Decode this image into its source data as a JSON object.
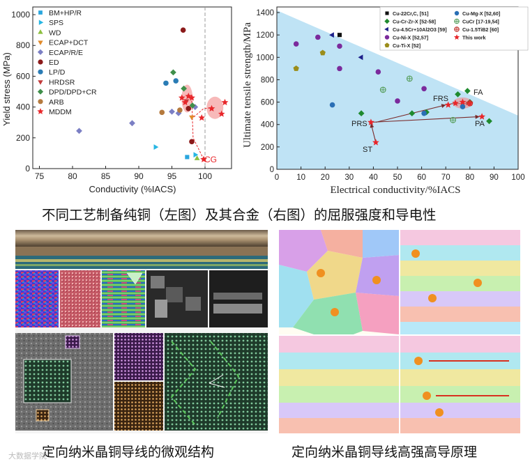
{
  "captions": {
    "top": "不同工艺制备纯铜（左图）及其合金（右图）的屈服强度和导电性",
    "bottom_left": "定向纳米晶铜导线的微观结构",
    "bottom_right": "定向纳米晶铜导线高强高导原理",
    "watermark": "大数据学院"
  },
  "chart_data": [
    {
      "type": "scatter",
      "title": "",
      "xlabel": "Conductivity (%IACS)",
      "ylabel": "Yield stress (MPa)",
      "xlim": [
        74,
        104
      ],
      "ylim": [
        0,
        1050
      ],
      "xticks": [
        "75",
        "80",
        "85",
        "90",
        "95",
        "100"
      ],
      "yticks": [
        "0",
        "200",
        "400",
        "600",
        "800",
        "1000"
      ],
      "reference_line_x": 100,
      "annotation": "CG",
      "legend": [
        "BM+HP/R",
        "SPS",
        "WD",
        "ECAP+DCT",
        "ECAP/R/E",
        "ED",
        "LP/D",
        "HRDSR",
        "DPD/DPD+CR",
        "ARB",
        "MDDM"
      ],
      "series": [
        {
          "name": "BM+HP/R",
          "color": "#2aa6de",
          "marker": "square",
          "points": [
            [
              97.3,
              75
            ]
          ]
        },
        {
          "name": "SPS",
          "color": "#27b6e3",
          "marker": "triangle-right",
          "points": [
            [
              92.5,
              140
            ],
            [
              98.5,
              90
            ]
          ]
        },
        {
          "name": "WD",
          "color": "#8cbf3f",
          "marker": "triangle-up",
          "points": [
            [
              98.8,
              65
            ]
          ]
        },
        {
          "name": "ECAP+DCT",
          "color": "#e18a2a",
          "marker": "triangle-down",
          "points": [
            [
              98,
              335
            ]
          ]
        },
        {
          "name": "ECAP/R/E",
          "color": "#7b7fc4",
          "marker": "diamond",
          "points": [
            [
              81,
              245
            ],
            [
              89,
              295
            ],
            [
              95,
              370
            ],
            [
              96,
              360
            ],
            [
              98.5,
              400
            ]
          ]
        },
        {
          "name": "ED",
          "color": "#8b1a1a",
          "marker": "circle",
          "points": [
            [
              96.7,
              900
            ],
            [
              98,
              175
            ],
            [
              97.5,
              390
            ]
          ]
        },
        {
          "name": "LP/D",
          "color": "#2a7cb5",
          "marker": "circle",
          "points": [
            [
              94.1,
              555
            ],
            [
              95.6,
              570
            ]
          ]
        },
        {
          "name": "HRDSR",
          "color": "#c23b3b",
          "marker": "triangle-down",
          "points": [
            [
              97.2,
              440
            ]
          ]
        },
        {
          "name": "DPD/DPD+CR",
          "color": "#3f8f4a",
          "marker": "diamond",
          "points": [
            [
              95.2,
              625
            ],
            [
              96.8,
              520
            ],
            [
              98.1,
              410
            ]
          ]
        },
        {
          "name": "ARB",
          "color": "#b57a3e",
          "marker": "circle",
          "points": [
            [
              93.5,
              365
            ],
            [
              96.2,
              380
            ]
          ]
        },
        {
          "name": "MDDM",
          "color": "#e8262a",
          "marker": "star",
          "points": [
            [
              96.5,
              460
            ],
            [
              97,
              430
            ],
            [
              97.5,
              470
            ],
            [
              98,
              460
            ],
            [
              99.5,
              330
            ],
            [
              101,
              390
            ],
            [
              102.5,
              355
            ],
            [
              103,
              430
            ],
            [
              99.8,
              60
            ]
          ]
        }
      ]
    },
    {
      "type": "scatter",
      "title": "",
      "xlabel": "Electrical conductivity/%IACS",
      "ylabel": "Ultimate tensile strength/MPa",
      "xlim": [
        0,
        100
      ],
      "ylim": [
        0,
        1450
      ],
      "xticks": [
        "0",
        "10",
        "20",
        "30",
        "40",
        "50",
        "60",
        "70",
        "80",
        "90",
        "100"
      ],
      "yticks": [
        "0",
        "200",
        "400",
        "600",
        "800",
        "1000",
        "1200",
        "1400"
      ],
      "annotations": [
        "FRS",
        "FA",
        "PRS",
        "PA",
        "ST"
      ],
      "legend": [
        "Cu-22Cr,C, [51]",
        "Cu-Cr-Zr-X [52-58]",
        "Cu-4.5Cr+10Al2O3 [59]",
        "Cu-Ni-X [52,57]",
        "Cu-Ti-X [52]",
        "Cu-Mg-X [52,60]",
        "CuCr [17-19,54]",
        "Cu-1.5TiB2 [60]",
        "This work"
      ],
      "series": [
        {
          "name": "Cu-22Cr,C, [51]",
          "color": "#111111",
          "marker": "square",
          "points": [
            [
              26,
              1200
            ]
          ]
        },
        {
          "name": "Cu-Cr-Zr-X [52-58]",
          "color": "#1e8a2e",
          "marker": "diamond",
          "points": [
            [
              35,
              500
            ],
            [
              56,
              500
            ],
            [
              62,
              510
            ],
            [
              75,
              670
            ],
            [
              79,
              700
            ],
            [
              80,
              600
            ],
            [
              88,
              430
            ]
          ]
        },
        {
          "name": "Cu-4.5Cr+10Al2O3 [59]",
          "color": "#1d1f8a",
          "marker": "triangle-left",
          "points": [
            [
              23,
              1200
            ],
            [
              35,
              1000
            ]
          ]
        },
        {
          "name": "Cu-Ni-X [52,57]",
          "color": "#7b2a9c",
          "marker": "circle",
          "points": [
            [
              8,
              1120
            ],
            [
              17,
              1180
            ],
            [
              26,
              1100
            ],
            [
              42,
              870
            ],
            [
              50,
              610
            ],
            [
              61,
              720
            ],
            [
              26,
              900
            ]
          ]
        },
        {
          "name": "Cu-Ti-X [52]",
          "color": "#9b8d1a",
          "marker": "pentagon",
          "points": [
            [
              8,
              900
            ],
            [
              19,
              1040
            ]
          ]
        },
        {
          "name": "Cu-Mg-X [52,60]",
          "color": "#2a6fb5",
          "marker": "circle",
          "points": [
            [
              23,
              575
            ],
            [
              61,
              500
            ],
            [
              77,
              560
            ]
          ]
        },
        {
          "name": "CuCr [17-19,54]",
          "color": "#5aa060",
          "marker": "circle-cross",
          "points": [
            [
              44,
              710
            ],
            [
              55,
              810
            ],
            [
              73,
              440
            ]
          ]
        },
        {
          "name": "Cu-1.5TiB2 [60]",
          "color": "#c0302a",
          "marker": "circle-cross",
          "points": [
            [
              80,
              590
            ]
          ]
        },
        {
          "name": "This work",
          "color": "#e8262a",
          "marker": "star",
          "points": [
            [
              41,
              240
            ],
            [
              39,
              420
            ],
            [
              85,
              470
            ],
            [
              71,
              575
            ],
            [
              74,
              590
            ],
            [
              77,
              600
            ],
            [
              80,
              590
            ]
          ]
        }
      ]
    }
  ]
}
